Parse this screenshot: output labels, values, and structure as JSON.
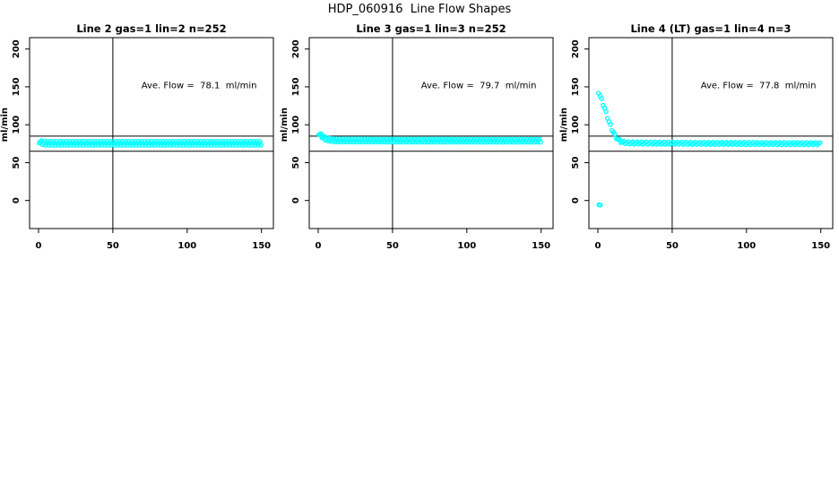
{
  "figure": {
    "title": "HDP_060916  Line Flow Shapes"
  },
  "chart_data": [
    {
      "type": "scatter",
      "title": "Line 2 gas=1 lin=2 n=252",
      "annotation": "Ave. Flow =  78.1  ml/min",
      "annotation_pos": [
        108,
        148
      ],
      "ylabel": "ml/min",
      "x_ticks": [
        0,
        50,
        100,
        150
      ],
      "y_ticks": [
        0,
        50,
        100,
        150,
        200
      ],
      "xlim": [
        -6,
        158
      ],
      "ylim": [
        -37,
        215
      ],
      "vline_x": 50,
      "hlines_y": [
        85,
        65
      ],
      "marker": "open-circle",
      "marker_color": "#00FFFF",
      "series": {
        "name": "flow-trace",
        "x_start": 0.6,
        "x_end": 150,
        "x_step": 0.7,
        "jitter": 2.5,
        "profile": [
          [
            0.6,
            78.5
          ],
          [
            2,
            76.5
          ],
          [
            5,
            75.5
          ],
          [
            150,
            75.5
          ]
        ]
      },
      "extra_points": []
    },
    {
      "type": "scatter",
      "title": "Line 3 gas=1 lin=3 n=252",
      "annotation": "Ave. Flow =  79.7  ml/min",
      "annotation_pos": [
        108,
        148
      ],
      "ylabel": "ml/min",
      "x_ticks": [
        0,
        50,
        100,
        150
      ],
      "y_ticks": [
        0,
        50,
        100,
        150,
        200
      ],
      "xlim": [
        -6,
        158
      ],
      "ylim": [
        -37,
        215
      ],
      "vline_x": 50,
      "hlines_y": [
        85,
        65
      ],
      "marker": "open-circle",
      "marker_color": "#00FFFF",
      "series": {
        "name": "flow-trace",
        "x_start": 0.5,
        "x_end": 150,
        "x_step": 0.7,
        "jitter": 2,
        "profile": [
          [
            0.5,
            89
          ],
          [
            1.5,
            87
          ],
          [
            3,
            84
          ],
          [
            5,
            81.5
          ],
          [
            8,
            80
          ],
          [
            12,
            79.3
          ],
          [
            150,
            79
          ]
        ]
      },
      "extra_points": []
    },
    {
      "type": "scatter",
      "title": "Line 4 (LT) gas=1 lin=4 n=3",
      "annotation": "Ave. Flow =  77.8  ml/min",
      "annotation_pos": [
        108,
        148
      ],
      "ylabel": "ml/min",
      "x_ticks": [
        0,
        50,
        100,
        150
      ],
      "y_ticks": [
        0,
        50,
        100,
        150,
        200
      ],
      "xlim": [
        -6,
        158
      ],
      "ylim": [
        -37,
        215
      ],
      "vline_x": 50,
      "hlines_y": [
        85,
        65
      ],
      "marker": "open-circle",
      "marker_color": "#00FFFF",
      "series": {
        "name": "flow-trace",
        "x_start": 0.5,
        "x_end": 150,
        "x_step": 1,
        "jitter": 1.5,
        "profile": [
          [
            0.5,
            143
          ],
          [
            1.5,
            138
          ],
          [
            2.5,
            133
          ],
          [
            3.5,
            127
          ],
          [
            4.5,
            122
          ],
          [
            5.5,
            116
          ],
          [
            6.5,
            110
          ],
          [
            7.5,
            104
          ],
          [
            8.5,
            99
          ],
          [
            9.5,
            94
          ],
          [
            10.5,
            90
          ],
          [
            11.5,
            86
          ],
          [
            12.5,
            83
          ],
          [
            14,
            80
          ],
          [
            16,
            77.5
          ],
          [
            20,
            76
          ],
          [
            60,
            75.5
          ],
          [
            150,
            75
          ]
        ]
      },
      "extra_points": [
        [
          0.8,
          -5.5
        ],
        [
          1.6,
          -6
        ]
      ]
    }
  ]
}
